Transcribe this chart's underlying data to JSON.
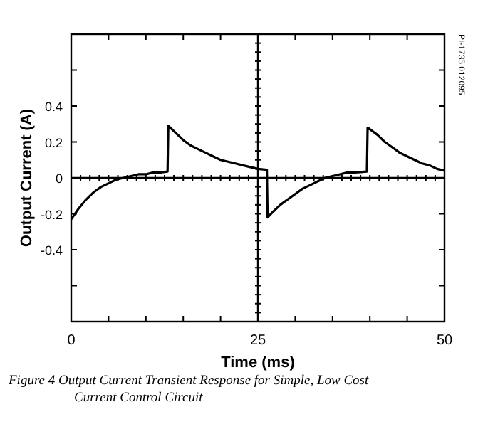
{
  "chart_data": {
    "type": "line",
    "xlabel": "Time (ms)",
    "ylabel": "Output Current (A)",
    "x": [
      0,
      1,
      2,
      3,
      4,
      5,
      6,
      7,
      8,
      9,
      10,
      11,
      12,
      12.9,
      13.0,
      14,
      15,
      16,
      17,
      18,
      19,
      20,
      21,
      22,
      23,
      24,
      25,
      26.2,
      26.3,
      27,
      28,
      29,
      30,
      31,
      32,
      33,
      34,
      35,
      36,
      37,
      38,
      39.6,
      39.7,
      41,
      42,
      43,
      44,
      45,
      46,
      47,
      48,
      49,
      50
    ],
    "series": [
      {
        "color": "#000000",
        "values": [
          -0.23,
          -0.17,
          -0.12,
          -0.08,
          -0.05,
          -0.03,
          -0.01,
          0.0,
          0.01,
          0.02,
          0.02,
          0.03,
          0.03,
          0.035,
          0.29,
          0.25,
          0.21,
          0.18,
          0.16,
          0.14,
          0.12,
          0.1,
          0.09,
          0.08,
          0.07,
          0.06,
          0.05,
          0.045,
          -0.22,
          -0.19,
          -0.15,
          -0.12,
          -0.09,
          -0.06,
          -0.04,
          -0.02,
          0.0,
          0.01,
          0.02,
          0.03,
          0.03,
          0.035,
          0.28,
          0.24,
          0.2,
          0.17,
          0.14,
          0.12,
          0.1,
          0.08,
          0.07,
          0.05,
          0.04
        ]
      }
    ],
    "xlim": [
      0,
      50
    ],
    "xticks": [
      0,
      {
        "value": 5,
        "label": null
      },
      {
        "value": 10,
        "label": null
      },
      {
        "value": 15,
        "label": null
      },
      {
        "value": 20,
        "label": null
      },
      25,
      {
        "value": 30,
        "label": null
      },
      {
        "value": 35,
        "label": null
      },
      {
        "value": 40,
        "label": null
      },
      {
        "value": 45,
        "label": null
      },
      50
    ],
    "ylim": [
      -0.8,
      0.8
    ],
    "yticks": [
      {
        "value": -0.8,
        "label": null
      },
      {
        "value": -0.6,
        "label": null
      },
      -0.4,
      -0.2,
      0,
      0.2,
      0.4,
      {
        "value": 0.6,
        "label": null
      },
      {
        "value": 0.8,
        "label": null
      }
    ],
    "ref_lines": [
      {
        "axis": "y",
        "value": 0
      },
      {
        "axis": "x",
        "value": 25
      }
    ],
    "grid": false,
    "marker": "none",
    "line_style": "solid",
    "annotations": [
      "PI-1735 012095",
      "Figure 4  Output Current Transient Response for Simple, Low Cost Current Control Circuit"
    ]
  }
}
